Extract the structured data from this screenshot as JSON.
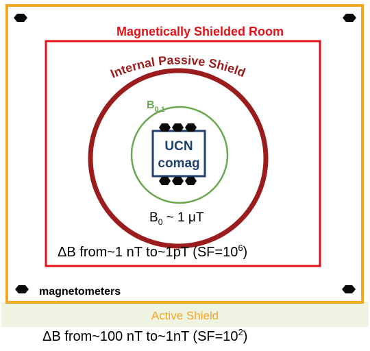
{
  "colors": {
    "active_shield": "#f5a623",
    "msr": "#e2121a",
    "passive_shield": "#9b1c1c",
    "b01": "#6aa84f",
    "comag": "#1f3f6e",
    "band": "#eef3e2",
    "sensor": "#0a0a0a"
  },
  "labels": {
    "msr": "Magnetically Shielded Room",
    "passive_shield": "Internal Passive Shield",
    "b01_main": "B",
    "b01_sub": "0,1",
    "comag_line1": "UCN",
    "comag_line2": "comag",
    "b0_main": "B",
    "b0_sub": "0",
    "b0_value": " ~ 1 μT",
    "inner_delta": "ΔB from~1 nT to~1pT (SF=10",
    "inner_exp": "6",
    "inner_close": ")",
    "magnetometers": "magnetometers",
    "active_shield": "Active Shield",
    "outer_delta": "ΔB from~100 nT to~1nT (SF=10",
    "outer_exp": "2",
    "outer_close": ")"
  },
  "icons": {
    "sensor": "magnetometer-sensor-icon"
  }
}
